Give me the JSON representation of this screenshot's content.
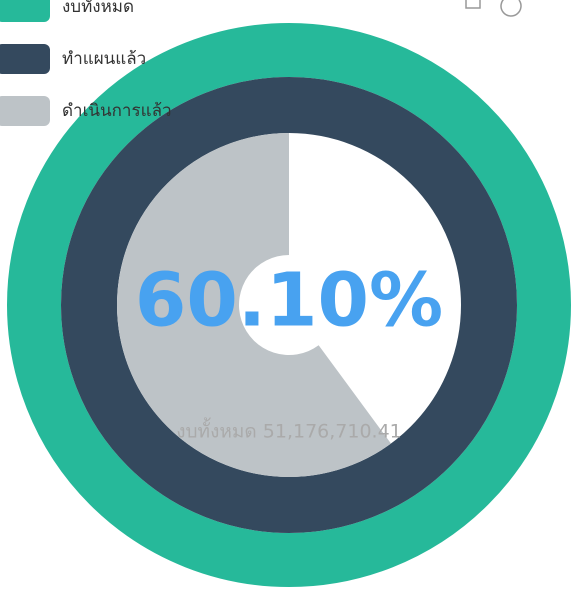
{
  "chart_data": {
    "type": "pie",
    "subtitle": "งบทั้งหมด 51,176,710.41",
    "series": [
      {
        "name": "งบทั้งหมด",
        "color": "#26b99a",
        "values": [
          100
        ]
      },
      {
        "name": "ทำแผนแล้ว",
        "color": "#34495e",
        "values": [
          100
        ]
      },
      {
        "name": "ดำเนินการแล้ว",
        "color": "#bdc3c7",
        "values": [
          60.1
        ],
        "value_labels": [
          "60.10%"
        ]
      }
    ],
    "legend": "top-left"
  }
}
